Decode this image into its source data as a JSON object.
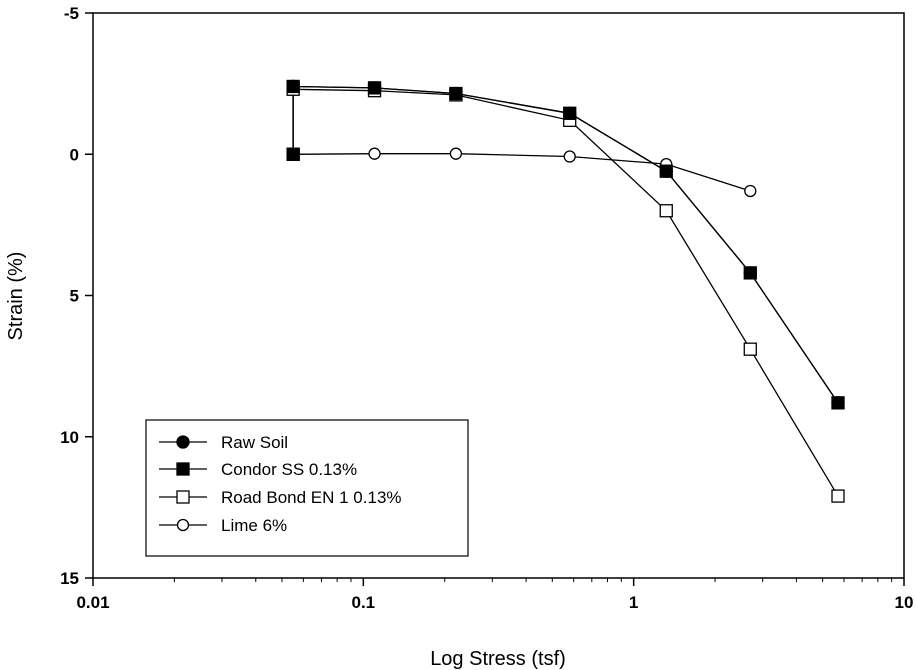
{
  "chart_data": {
    "type": "line",
    "xlabel": "Log Stress (tsf)",
    "ylabel": "Strain (%)",
    "x_scale": "log",
    "xlim": [
      0.01,
      10
    ],
    "ylim": [
      15,
      -5
    ],
    "y_inverted": true,
    "x_ticks": [
      {
        "value": 0.01,
        "label": "0.01"
      },
      {
        "value": 0.1,
        "label": "0.1"
      },
      {
        "value": 1,
        "label": "1"
      },
      {
        "value": 10,
        "label": "10"
      }
    ],
    "y_ticks": [
      {
        "value": -5,
        "label": "-5"
      },
      {
        "value": 0,
        "label": "0"
      },
      {
        "value": 5,
        "label": "5"
      },
      {
        "value": 10,
        "label": "10"
      },
      {
        "value": 15,
        "label": "15"
      }
    ],
    "grid": false,
    "legend": {
      "position": "bottom-left"
    },
    "series": [
      {
        "name": "Raw Soil",
        "marker": "filled-circle",
        "points": [
          [
            0.055,
            0
          ],
          [
            0.055,
            -2.4
          ],
          [
            0.11,
            -2.35
          ],
          [
            0.22,
            -2.15
          ],
          [
            0.58,
            -1.45
          ],
          [
            1.32,
            0.6
          ],
          [
            2.7,
            4.2
          ],
          [
            5.7,
            8.8
          ]
        ]
      },
      {
        "name": "Condor SS 0.13%",
        "marker": "filled-square",
        "points": [
          [
            0.055,
            0
          ],
          [
            0.055,
            -2.4
          ],
          [
            0.11,
            -2.35
          ],
          [
            0.22,
            -2.15
          ],
          [
            0.58,
            -1.45
          ],
          [
            1.32,
            0.6
          ],
          [
            2.7,
            4.2
          ],
          [
            5.7,
            8.8
          ]
        ]
      },
      {
        "name": "Road Bond EN 1 0.13%",
        "marker": "open-square",
        "points": [
          [
            0.055,
            0
          ],
          [
            0.055,
            -2.3
          ],
          [
            0.11,
            -2.25
          ],
          [
            0.22,
            -2.1
          ],
          [
            0.58,
            -1.2
          ],
          [
            1.32,
            2.0
          ],
          [
            2.7,
            6.9
          ],
          [
            5.7,
            12.1
          ]
        ]
      },
      {
        "name": "Lime 6%",
        "marker": "open-circle",
        "points": [
          [
            0.055,
            0
          ],
          [
            0.11,
            -0.02
          ],
          [
            0.22,
            -0.02
          ],
          [
            0.58,
            0.08
          ],
          [
            1.32,
            0.35
          ],
          [
            2.7,
            1.3
          ]
        ]
      }
    ]
  }
}
